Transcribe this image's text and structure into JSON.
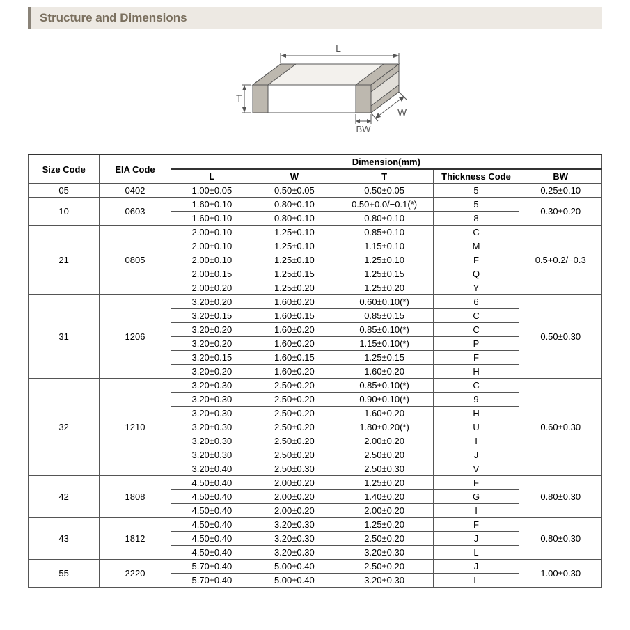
{
  "section": {
    "title": "Structure and Dimensions"
  },
  "diagram": {
    "labels": {
      "L": "L",
      "W": "W",
      "T": "T",
      "BW": "BW"
    },
    "stroke": "#555555",
    "label_color": "#555555",
    "fill_top": "#f3f1ed",
    "fill_front": "#ffffff",
    "fill_side": "#e2dfd9",
    "fill_band": "#bdb8af"
  },
  "table": {
    "headers": {
      "size": "Size Code",
      "eia": "EIA Code",
      "dim": "Dimension(mm)",
      "L": "L",
      "W": "W",
      "T": "T",
      "thick": "Thickness  Code",
      "BW": "BW"
    },
    "groups": [
      {
        "size": "05",
        "eia": "0402",
        "bw": "0.25±0.10",
        "rows": [
          {
            "L": "1.00±0.05",
            "W": "0.50±0.05",
            "T": "0.50±0.05",
            "tc": "5"
          }
        ]
      },
      {
        "size": "10",
        "eia": "0603",
        "bw": "0.30±0.20",
        "rows": [
          {
            "L": "1.60±0.10",
            "W": "0.80±0.10",
            "T": "0.50+0.0/−0.1(*)",
            "tc": "5"
          },
          {
            "L": "1.60±0.10",
            "W": "0.80±0.10",
            "T": "0.80±0.10",
            "tc": "8"
          }
        ]
      },
      {
        "size": "21",
        "eia": "0805",
        "bw": "0.5+0.2/−0.3",
        "rows": [
          {
            "L": "2.00±0.10",
            "W": "1.25±0.10",
            "T": "0.85±0.10",
            "tc": "C"
          },
          {
            "L": "2.00±0.10",
            "W": "1.25±0.10",
            "T": "1.15±0.10",
            "tc": "M"
          },
          {
            "L": "2.00±0.10",
            "W": "1.25±0.10",
            "T": "1.25±0.10",
            "tc": "F"
          },
          {
            "L": "2.00±0.15",
            "W": "1.25±0.15",
            "T": "1.25±0.15",
            "tc": "Q"
          },
          {
            "L": "2.00±0.20",
            "W": "1.25±0.20",
            "T": "1.25±0.20",
            "tc": "Y"
          }
        ]
      },
      {
        "size": "31",
        "eia": "1206",
        "bw": "0.50±0.30",
        "rows": [
          {
            "L": "3.20±0.20",
            "W": "1.60±0.20",
            "T": "0.60±0.10(*)",
            "tc": "6"
          },
          {
            "L": "3.20±0.15",
            "W": "1.60±0.15",
            "T": "0.85±0.15",
            "tc": "C"
          },
          {
            "L": "3.20±0.20",
            "W": "1.60±0.20",
            "T": "0.85±0.10(*)",
            "tc": "C"
          },
          {
            "L": "3.20±0.20",
            "W": "1.60±0.20",
            "T": "1.15±0.10(*)",
            "tc": "P"
          },
          {
            "L": "3.20±0.15",
            "W": "1.60±0.15",
            "T": "1.25±0.15",
            "tc": "F"
          },
          {
            "L": "3.20±0.20",
            "W": "1.60±0.20",
            "T": "1.60±0.20",
            "tc": "H"
          }
        ]
      },
      {
        "size": "32",
        "eia": "1210",
        "bw": "0.60±0.30",
        "rows": [
          {
            "L": "3.20±0.30",
            "W": "2.50±0.20",
            "T": "0.85±0.10(*)",
            "tc": "C"
          },
          {
            "L": "3.20±0.30",
            "W": "2.50±0.20",
            "T": "0.90±0.10(*)",
            "tc": "9"
          },
          {
            "L": "3.20±0.30",
            "W": "2.50±0.20",
            "T": "1.60±0.20",
            "tc": "H"
          },
          {
            "L": "3.20±0.30",
            "W": "2.50±0.20",
            "T": "1.80±0.20(*)",
            "tc": "U"
          },
          {
            "L": "3.20±0.30",
            "W": "2.50±0.20",
            "T": "2.00±0.20",
            "tc": "I"
          },
          {
            "L": "3.20±0.30",
            "W": "2.50±0.20",
            "T": "2.50±0.20",
            "tc": "J"
          },
          {
            "L": "3.20±0.40",
            "W": "2.50±0.30",
            "T": "2.50±0.30",
            "tc": "V"
          }
        ]
      },
      {
        "size": "42",
        "eia": "1808",
        "bw": "0.80±0.30",
        "rows": [
          {
            "L": "4.50±0.40",
            "W": "2.00±0.20",
            "T": "1.25±0.20",
            "tc": "F"
          },
          {
            "L": "4.50±0.40",
            "W": "2.00±0.20",
            "T": "1.40±0.20",
            "tc": "G"
          },
          {
            "L": "4.50±0.40",
            "W": "2.00±0.20",
            "T": "2.00±0.20",
            "tc": "I"
          }
        ]
      },
      {
        "size": "43",
        "eia": "1812",
        "bw": "0.80±0.30",
        "rows": [
          {
            "L": "4.50±0.40",
            "W": "3.20±0.30",
            "T": "1.25±0.20",
            "tc": "F"
          },
          {
            "L": "4.50±0.40",
            "W": "3.20±0.30",
            "T": "2.50±0.20",
            "tc": "J"
          },
          {
            "L": "4.50±0.40",
            "W": "3.20±0.30",
            "T": "3.20±0.30",
            "tc": "L"
          }
        ]
      },
      {
        "size": "55",
        "eia": "2220",
        "bw": "1.00±0.30",
        "rows": [
          {
            "L": "5.70±0.40",
            "W": "5.00±0.40",
            "T": "2.50±0.20",
            "tc": "J"
          },
          {
            "L": "5.70±0.40",
            "W": "5.00±0.40",
            "T": "3.20±0.30",
            "tc": "L"
          }
        ]
      }
    ]
  }
}
